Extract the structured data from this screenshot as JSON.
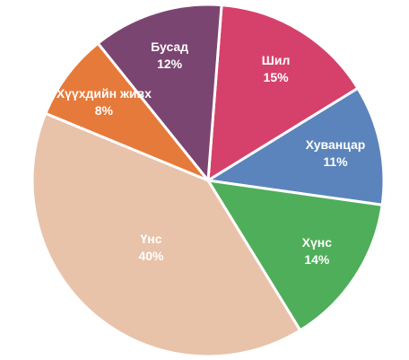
{
  "chart_data": {
    "type": "pie",
    "categories": [
      "Шил",
      "Хуванцар",
      "Хүнс",
      "Үнс",
      "Хүүхдийн живх",
      "Бусад"
    ],
    "values": [
      15,
      11,
      14,
      40,
      8,
      12
    ],
    "value_labels": [
      "15%",
      "11%",
      "14%",
      "40%",
      "8%",
      "12%"
    ],
    "colors": [
      "#d6416b",
      "#5b84bc",
      "#4fae5a",
      "#e9c2aa",
      "#e67a3a",
      "#7b4571"
    ]
  }
}
